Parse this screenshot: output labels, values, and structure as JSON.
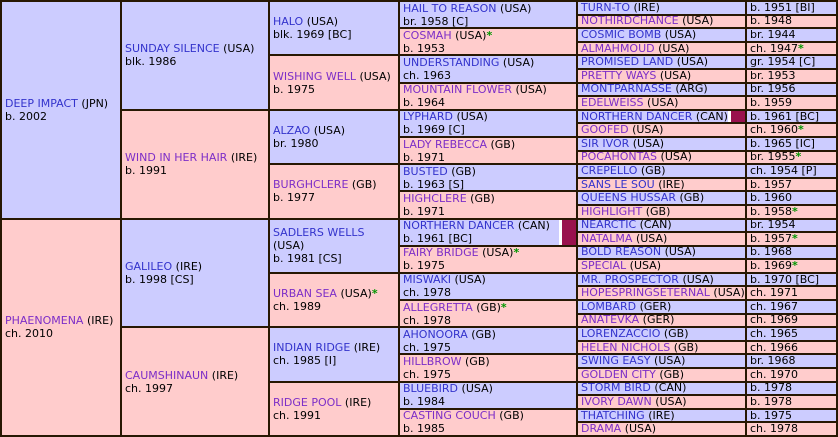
{
  "colors": {
    "sire_bg": "#ccccff",
    "dam_bg": "#ffcccc",
    "link_blue": "#3333cc",
    "link_visited_purple": "#7d2ec8",
    "border": "#271803",
    "duplicate_marker_maroon": "#99114d",
    "asterisk_green": "#009700"
  },
  "gen1": [
    {
      "name": "DEEP IMPACT",
      "country": "(JPN)",
      "star": "",
      "info": "b. 2002"
    },
    {
      "name": "PHAENOMENA",
      "country": "(IRE)",
      "star": "",
      "info": "ch. 2010"
    }
  ],
  "gen2": [
    {
      "name": "SUNDAY SILENCE",
      "country": "(USA)",
      "star": "",
      "info": "blk. 1986"
    },
    {
      "name": "WIND IN HER HAIR",
      "country": "(IRE)",
      "star": "",
      "info": "b. 1991"
    },
    {
      "name": "GALILEO",
      "country": "(IRE)",
      "star": "",
      "info": "b. 1998 [CS]"
    },
    {
      "name": "CAUMSHINAUN",
      "country": "(IRE)",
      "star": "",
      "info": "ch. 1997"
    }
  ],
  "gen3": [
    {
      "name": "HALO",
      "country": "(USA)",
      "star": "",
      "info": "blk. 1969 [BC]"
    },
    {
      "name": "WISHING WELL",
      "country": "(USA)",
      "star": "",
      "info": "b. 1975"
    },
    {
      "name": "ALZAO",
      "country": "(USA)",
      "star": "",
      "info": "br. 1980"
    },
    {
      "name": "BURGHCLERE",
      "country": "(GB)",
      "star": "",
      "info": "b. 1977"
    },
    {
      "name": "SADLERS WELLS",
      "country": "(USA)",
      "star": "",
      "info": "b. 1981 [CS]"
    },
    {
      "name": "URBAN SEA",
      "country": "(USA)",
      "star": "*",
      "info": "ch. 1989"
    },
    {
      "name": "INDIAN RIDGE",
      "country": "(IRE)",
      "star": "",
      "info": "ch. 1985 [I]"
    },
    {
      "name": "RIDGE POOL",
      "country": "(IRE)",
      "star": "",
      "info": "ch. 1991"
    }
  ],
  "gen4": [
    {
      "name": "HAIL TO REASON",
      "country": "(USA)",
      "star": "",
      "info": "br. 1958 [C]"
    },
    {
      "name": "COSMAH",
      "country": "(USA)",
      "star": "*",
      "info": "b. 1953"
    },
    {
      "name": "UNDERSTANDING",
      "country": "(USA)",
      "star": "",
      "info": "ch. 1963"
    },
    {
      "name": "MOUNTAIN FLOWER",
      "country": "(USA)",
      "star": "",
      "info": "b. 1964"
    },
    {
      "name": "LYPHARD",
      "country": "(USA)",
      "star": "",
      "info": "b. 1969 [C]"
    },
    {
      "name": "LADY REBECCA",
      "country": "(GB)",
      "star": "",
      "info": "b. 1971"
    },
    {
      "name": "BUSTED",
      "country": "(GB)",
      "star": "",
      "info": "b. 1963 [S]"
    },
    {
      "name": "HIGHCLERE",
      "country": "(GB)",
      "star": "",
      "info": "b. 1971"
    },
    {
      "name": "NORTHERN DANCER",
      "country": "(CAN)",
      "star": "",
      "info": "b. 1961 [BC]"
    },
    {
      "name": "FAIRY BRIDGE",
      "country": "(USA)",
      "star": "*",
      "info": "b. 1975"
    },
    {
      "name": "MISWAKI",
      "country": "(USA)",
      "star": "",
      "info": "ch. 1978"
    },
    {
      "name": "ALLEGRETTA",
      "country": "(GB)",
      "star": "*",
      "info": "ch. 1978"
    },
    {
      "name": "AHONOORA",
      "country": "(GB)",
      "star": "",
      "info": "ch. 1975"
    },
    {
      "name": "HILLBROW",
      "country": "(GB)",
      "star": "",
      "info": "ch. 1975"
    },
    {
      "name": "BLUEBIRD",
      "country": "(USA)",
      "star": "",
      "info": "b. 1984"
    },
    {
      "name": "CASTING COUCH",
      "country": "(GB)",
      "star": "",
      "info": "b. 1985"
    }
  ],
  "gen5": [
    {
      "name": "TURN-TO",
      "country": "(IRE)"
    },
    {
      "name": "NOTHIRDCHANCE",
      "country": "(USA)"
    },
    {
      "name": "COSMIC BOMB",
      "country": "(USA)"
    },
    {
      "name": "ALMAHMOUD",
      "country": "(USA)"
    },
    {
      "name": "PROMISED LAND",
      "country": "(USA)"
    },
    {
      "name": "PRETTY WAYS",
      "country": "(USA)"
    },
    {
      "name": "MONTPARNASSE",
      "country": "(ARG)"
    },
    {
      "name": "EDELWEISS",
      "country": "(USA)"
    },
    {
      "name": "NORTHERN DANCER",
      "country": "(CAN)"
    },
    {
      "name": "GOOFED",
      "country": "(USA)"
    },
    {
      "name": "SIR IVOR",
      "country": "(USA)"
    },
    {
      "name": "POCAHONTAS",
      "country": "(USA)"
    },
    {
      "name": "CREPELLO",
      "country": "(GB)"
    },
    {
      "name": "SANS LE SOU",
      "country": "(IRE)"
    },
    {
      "name": "QUEENS HUSSAR",
      "country": "(GB)"
    },
    {
      "name": "HIGHLIGHT",
      "country": "(GB)"
    },
    {
      "name": "NEARCTIC",
      "country": "(CAN)"
    },
    {
      "name": "NATALMA",
      "country": "(USA)"
    },
    {
      "name": "BOLD REASON",
      "country": "(USA)"
    },
    {
      "name": "SPECIAL",
      "country": "(USA)"
    },
    {
      "name": "MR. PROSPECTOR",
      "country": "(USA)"
    },
    {
      "name": "HOPESPRINGSETERNAL",
      "country": "(USA)"
    },
    {
      "name": "LOMBARD",
      "country": "(GER)"
    },
    {
      "name": "ANATEVKA",
      "country": "(GER)"
    },
    {
      "name": "LORENZACCIO",
      "country": "(GB)"
    },
    {
      "name": "HELEN NICHOLS",
      "country": "(GB)"
    },
    {
      "name": "SWING EASY",
      "country": "(USA)"
    },
    {
      "name": "GOLDEN CITY",
      "country": "(GB)"
    },
    {
      "name": "STORM BIRD",
      "country": "(CAN)"
    },
    {
      "name": "IVORY DAWN",
      "country": "(USA)"
    },
    {
      "name": "THATCHING",
      "country": "(IRE)"
    },
    {
      "name": "DRAMA",
      "country": "(USA)"
    }
  ],
  "gen5info": [
    {
      "text": "b. 1951 [BI]",
      "star": ""
    },
    {
      "text": "b. 1948",
      "star": ""
    },
    {
      "text": "br. 1944",
      "star": ""
    },
    {
      "text": "ch. 1947",
      "star": " *"
    },
    {
      "text": "gr. 1954 [C]",
      "star": ""
    },
    {
      "text": "br. 1953",
      "star": ""
    },
    {
      "text": "br. 1956",
      "star": ""
    },
    {
      "text": "b. 1959",
      "star": ""
    },
    {
      "text": "b. 1961 [BC]",
      "star": ""
    },
    {
      "text": "ch. 1960",
      "star": " *"
    },
    {
      "text": "b. 1965 [IC]",
      "star": ""
    },
    {
      "text": "br. 1955",
      "star": " *"
    },
    {
      "text": "ch. 1954 [P]",
      "star": ""
    },
    {
      "text": "b. 1957",
      "star": ""
    },
    {
      "text": "b. 1960",
      "star": ""
    },
    {
      "text": "b. 1958",
      "star": " *"
    },
    {
      "text": "br. 1954",
      "star": ""
    },
    {
      "text": "b. 1957",
      "star": " *"
    },
    {
      "text": "b. 1968",
      "star": ""
    },
    {
      "text": "b. 1969",
      "star": " *"
    },
    {
      "text": "b. 1970 [BC]",
      "star": ""
    },
    {
      "text": "ch. 1971",
      "star": ""
    },
    {
      "text": "ch. 1967",
      "star": ""
    },
    {
      "text": "ch. 1969",
      "star": ""
    },
    {
      "text": "ch. 1965",
      "star": ""
    },
    {
      "text": "ch. 1966",
      "star": ""
    },
    {
      "text": "br. 1968",
      "star": ""
    },
    {
      "text": "ch. 1970",
      "star": ""
    },
    {
      "text": "b. 1978",
      "star": ""
    },
    {
      "text": "b. 1978",
      "star": ""
    },
    {
      "text": "b. 1975",
      "star": ""
    },
    {
      "text": "ch. 1978",
      "star": ""
    }
  ]
}
